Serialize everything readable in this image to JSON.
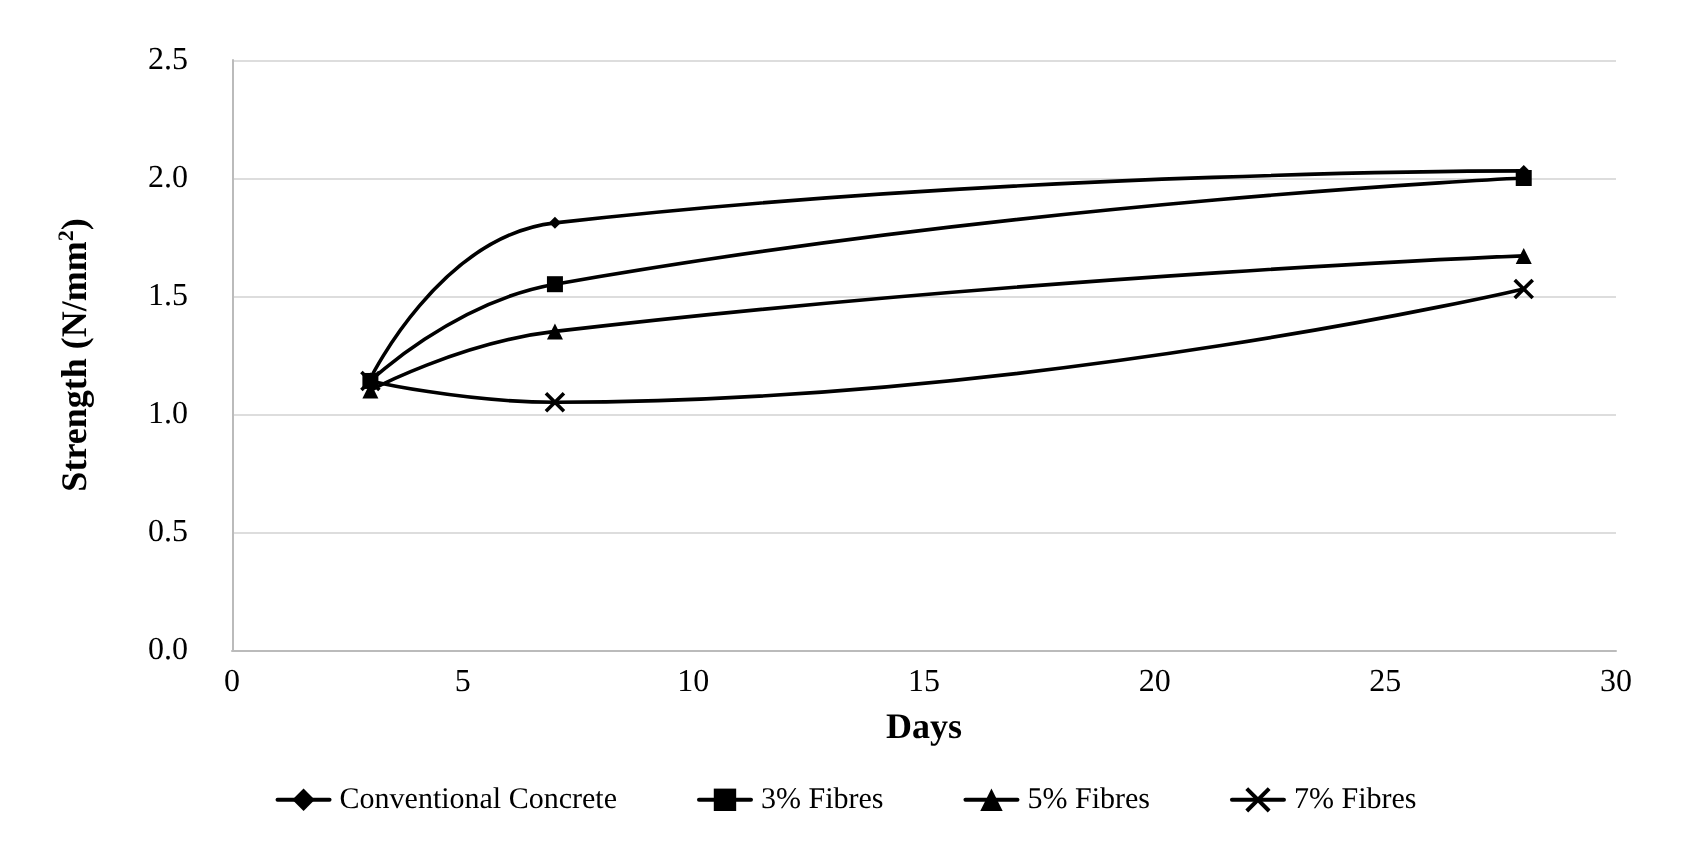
{
  "chart_data": {
    "type": "line",
    "xlabel": "Days",
    "ylabel": "Strength (N/mm$^{2}$)",
    "x": [
      3,
      7,
      28
    ],
    "series": [
      {
        "name": "Conventional Concrete",
        "color": "#000000",
        "marker": "diamond",
        "values": [
          1.15,
          1.81,
          2.03
        ]
      },
      {
        "name": "3% Fibres",
        "color": "#000000",
        "marker": "square",
        "values": [
          1.14,
          1.55,
          2.0
        ]
      },
      {
        "name": "5% Fibres",
        "color": "#000000",
        "marker": "triangle",
        "values": [
          1.1,
          1.35,
          1.67
        ]
      },
      {
        "name": "7% Fibres",
        "color": "#000000",
        "marker": "cross",
        "values": [
          1.14,
          1.05,
          1.53
        ]
      }
    ],
    "xlim": [
      0,
      30
    ],
    "xticks": [
      0,
      5,
      10,
      15,
      20,
      25,
      30
    ],
    "ylim": [
      0,
      2.5
    ],
    "yticks": [
      {
        "value": 0,
        "label": "0.0"
      },
      {
        "value": 0.5,
        "label": "0.5"
      },
      {
        "value": 1,
        "label": "1.0"
      },
      {
        "value": 1.5,
        "label": "1.5"
      },
      {
        "value": 2,
        "label": "2.0"
      },
      {
        "value": 2.5,
        "label": "2.5"
      }
    ],
    "grid": "y",
    "legend": "bottom"
  }
}
